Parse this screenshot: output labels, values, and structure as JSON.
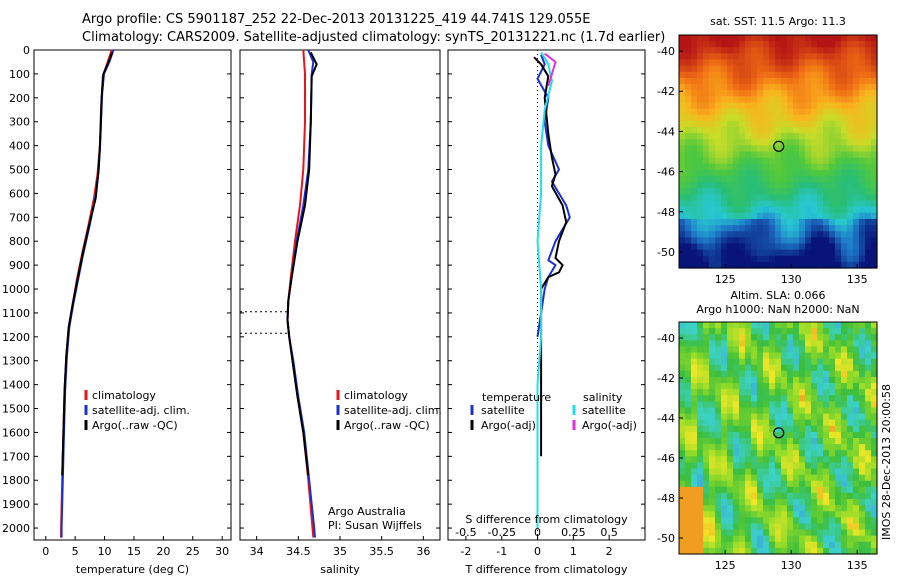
{
  "header": {
    "line1": "Argo profile: CS 5901187_252 22-Dec-2013 20131225_419 44.741S 129.055E",
    "line2": "Climatology: CARS2009. Satellite-adjusted climatology: synTS_20131221.nc (1.7d earlier)"
  },
  "stamp": "IMOS 28-Dec-2013 20:00:58",
  "colors": {
    "climatology": "#e8141b",
    "satellite": "#1a2fd6",
    "argo": "#000000",
    "salinity_sat": "#22e0e8",
    "salinity_argo": "#e62ee0"
  },
  "depth_axis": {
    "ylim": [
      2050,
      0
    ],
    "ticks": [
      0,
      100,
      200,
      300,
      400,
      500,
      600,
      700,
      800,
      900,
      1000,
      1100,
      1200,
      1300,
      1400,
      1500,
      1600,
      1700,
      1800,
      1900,
      2000
    ],
    "label": ""
  },
  "chart_data": [
    {
      "type": "line",
      "id": "temperature",
      "xlabel": "temperature (deg C)",
      "xlim": [
        -2,
        31.5
      ],
      "xticks": [
        0,
        5,
        10,
        15,
        20,
        25,
        30
      ],
      "legend": [
        "climatology",
        "satellite-adj. clim.",
        "Argo(..raw -QC)"
      ],
      "series": [
        {
          "name": "climatology",
          "color": "#e8141b",
          "points": [
            [
              11.2,
              0
            ],
            [
              10.4,
              60
            ],
            [
              9.7,
              110
            ],
            [
              9.4,
              250
            ],
            [
              9.2,
              400
            ],
            [
              8.8,
              520
            ],
            [
              8.2,
              620
            ],
            [
              7.2,
              740
            ],
            [
              6.2,
              850
            ],
            [
              5.3,
              960
            ],
            [
              4.6,
              1060
            ],
            [
              3.9,
              1160
            ],
            [
              3.5,
              1280
            ],
            [
              3.2,
              1420
            ],
            [
              3.0,
              1600
            ],
            [
              2.8,
              1800
            ],
            [
              2.6,
              2000
            ],
            [
              2.6,
              2040
            ]
          ]
        },
        {
          "name": "satellite-adj. clim.",
          "color": "#1a2fd6",
          "points": [
            [
              11.5,
              0
            ],
            [
              10.8,
              50
            ],
            [
              9.9,
              100
            ],
            [
              9.6,
              180
            ],
            [
              9.4,
              300
            ],
            [
              9.2,
              420
            ],
            [
              8.9,
              520
            ],
            [
              8.4,
              620
            ],
            [
              7.4,
              740
            ],
            [
              6.4,
              850
            ],
            [
              5.5,
              960
            ],
            [
              4.7,
              1060
            ],
            [
              4.0,
              1160
            ],
            [
              3.6,
              1280
            ],
            [
              3.3,
              1420
            ],
            [
              3.1,
              1600
            ],
            [
              2.9,
              1800
            ],
            [
              2.7,
              2000
            ],
            [
              2.7,
              2040
            ]
          ]
        },
        {
          "name": "Argo(..raw -QC)",
          "color": "#000000",
          "points": [
            [
              11.3,
              10
            ],
            [
              10.6,
              55
            ],
            [
              9.8,
              100
            ],
            [
              9.5,
              200
            ],
            [
              9.3,
              350
            ],
            [
              9.0,
              500
            ],
            [
              8.5,
              620
            ],
            [
              7.3,
              740
            ],
            [
              6.3,
              850
            ],
            [
              5.4,
              960
            ],
            [
              4.6,
              1060
            ],
            [
              3.9,
              1160
            ],
            [
              3.5,
              1280
            ],
            [
              3.2,
              1420
            ],
            [
              3.0,
              1600
            ],
            [
              2.8,
              1780
            ]
          ]
        }
      ]
    },
    {
      "type": "line",
      "id": "salinity",
      "xlabel": "salinity",
      "xlim": [
        33.8,
        36.2
      ],
      "xticks": [
        34,
        34.5,
        35,
        35.5,
        36
      ],
      "legend": [
        "climatology",
        "satellite-adj. clim.",
        "Argo(..raw -QC)"
      ],
      "annotation": [
        "Argo Australia",
        "PI: Susan Wijffels"
      ],
      "dotted_depths": [
        1095,
        1185
      ],
      "series": [
        {
          "name": "climatology",
          "color": "#e8141b",
          "points": [
            [
              34.56,
              0
            ],
            [
              34.58,
              100
            ],
            [
              34.58,
              300
            ],
            [
              34.56,
              500
            ],
            [
              34.52,
              650
            ],
            [
              34.46,
              800
            ],
            [
              34.41,
              950
            ],
            [
              34.38,
              1050
            ],
            [
              34.37,
              1130
            ],
            [
              34.39,
              1200
            ],
            [
              34.43,
              1300
            ],
            [
              34.49,
              1450
            ],
            [
              34.56,
              1600
            ],
            [
              34.62,
              1800
            ],
            [
              34.67,
              2000
            ],
            [
              34.68,
              2040
            ]
          ]
        },
        {
          "name": "satellite-adj. clim.",
          "color": "#1a2fd6",
          "points": [
            [
              34.62,
              0
            ],
            [
              34.68,
              50
            ],
            [
              34.66,
              100
            ],
            [
              34.65,
              300
            ],
            [
              34.62,
              500
            ],
            [
              34.56,
              650
            ],
            [
              34.48,
              800
            ],
            [
              34.42,
              950
            ],
            [
              34.38,
              1050
            ],
            [
              34.37,
              1130
            ],
            [
              34.39,
              1200
            ],
            [
              34.44,
              1300
            ],
            [
              34.5,
              1450
            ],
            [
              34.57,
              1600
            ],
            [
              34.63,
              1800
            ],
            [
              34.69,
              2000
            ],
            [
              34.7,
              2040
            ]
          ]
        },
        {
          "name": "Argo(..raw -QC)",
          "color": "#000000",
          "points": [
            [
              34.65,
              10
            ],
            [
              34.72,
              60
            ],
            [
              34.66,
              110
            ],
            [
              34.65,
              300
            ],
            [
              34.63,
              500
            ],
            [
              34.58,
              650
            ],
            [
              34.49,
              800
            ],
            [
              34.42,
              950
            ],
            [
              34.38,
              1050
            ],
            [
              34.37,
              1130
            ],
            [
              34.39,
              1200
            ],
            [
              34.43,
              1300
            ],
            [
              34.49,
              1450
            ],
            [
              34.56,
              1600
            ],
            [
              34.62,
              1780
            ]
          ]
        }
      ]
    },
    {
      "type": "line",
      "id": "difference",
      "xlabel": "T difference from climatology",
      "xlabel_top": "S difference from climatology",
      "xlim": [
        -2.5,
        3.0
      ],
      "xticks": [
        -2,
        -1,
        0,
        1,
        2
      ],
      "top_ticks": [
        -0.5,
        -0.25,
        0,
        0.25,
        0.5
      ],
      "legend_temperature": {
        "title": "temperature",
        "items": [
          "satellite",
          "Argo(-adj)"
        ]
      },
      "legend_salinity": {
        "title": "salinity",
        "items": [
          "satellite",
          "Argo(-adj)"
        ]
      },
      "series": [
        {
          "name": "temperature satellite",
          "color": "#1a2fd6",
          "points": [
            [
              0.1,
              20
            ],
            [
              0.2,
              60
            ],
            [
              0.0,
              120
            ],
            [
              0.3,
              200
            ],
            [
              0.2,
              300
            ],
            [
              0.3,
              400
            ],
            [
              0.6,
              500
            ],
            [
              0.4,
              550
            ],
            [
              0.8,
              650
            ],
            [
              0.9,
              700
            ],
            [
              0.5,
              800
            ],
            [
              0.3,
              880
            ],
            [
              0.5,
              900
            ],
            [
              0.3,
              950
            ],
            [
              0.2,
              1000
            ],
            [
              0.1,
              1100
            ],
            [
              0.0,
              1200
            ]
          ]
        },
        {
          "name": "temperature Argo(-adj)",
          "color": "#000000",
          "points": [
            [
              -0.1,
              30
            ],
            [
              0.1,
              60
            ],
            [
              0.3,
              110
            ],
            [
              0.2,
              200
            ],
            [
              0.3,
              350
            ],
            [
              0.4,
              450
            ],
            [
              0.5,
              520
            ],
            [
              0.4,
              570
            ],
            [
              0.7,
              650
            ],
            [
              0.8,
              720
            ],
            [
              0.6,
              800
            ],
            [
              0.5,
              870
            ],
            [
              0.7,
              900
            ],
            [
              0.6,
              930
            ],
            [
              0.3,
              950
            ],
            [
              0.1,
              1000
            ],
            [
              0.1,
              1100
            ],
            [
              0.1,
              1200
            ],
            [
              0.1,
              1300
            ],
            [
              0.1,
              1500
            ],
            [
              0.1,
              1700
            ]
          ]
        },
        {
          "name": "salinity satellite",
          "color": "#22e0e8",
          "points": [
            [
              0.1,
              10
            ],
            [
              0.3,
              60
            ],
            [
              0.4,
              130
            ],
            [
              0.2,
              250
            ],
            [
              0.1,
              400
            ],
            [
              0.1,
              600
            ],
            [
              0.0,
              800
            ],
            [
              0.1,
              1000
            ],
            [
              0.1,
              1200
            ],
            [
              0.0,
              1400
            ],
            [
              0.0,
              1600
            ],
            [
              0.0,
              1800
            ],
            [
              0.0,
              2000
            ]
          ]
        },
        {
          "name": "salinity Argo(-adj)",
          "color": "#e62ee0",
          "points": [
            [
              0.2,
              15
            ],
            [
              0.5,
              50
            ],
            [
              0.4,
              100
            ],
            [
              0.3,
              150
            ]
          ]
        }
      ]
    },
    {
      "type": "heatmap",
      "id": "sst_map",
      "title": "sat. SST: 11.5 Argo: 11.3",
      "xlim": [
        121.5,
        136.5
      ],
      "ylim": [
        -50.8,
        -39.2
      ],
      "xticks": [
        125,
        130,
        135
      ],
      "yticks": [
        -40,
        -42,
        -44,
        -46,
        -48,
        -50
      ],
      "marker": [
        129.055,
        -44.741
      ]
    },
    {
      "type": "heatmap",
      "id": "sla_map",
      "title_lines": [
        "Altim. SLA: 0.066",
        "Argo h1000: NaN h2000: NaN"
      ],
      "xlim": [
        121.5,
        136.5
      ],
      "ylim": [
        -50.8,
        -39.2
      ],
      "xticks": [
        125,
        130,
        135
      ],
      "yticks": [
        -40,
        -42,
        -44,
        -46,
        -48,
        -50
      ],
      "marker": [
        129.055,
        -44.741
      ]
    }
  ]
}
